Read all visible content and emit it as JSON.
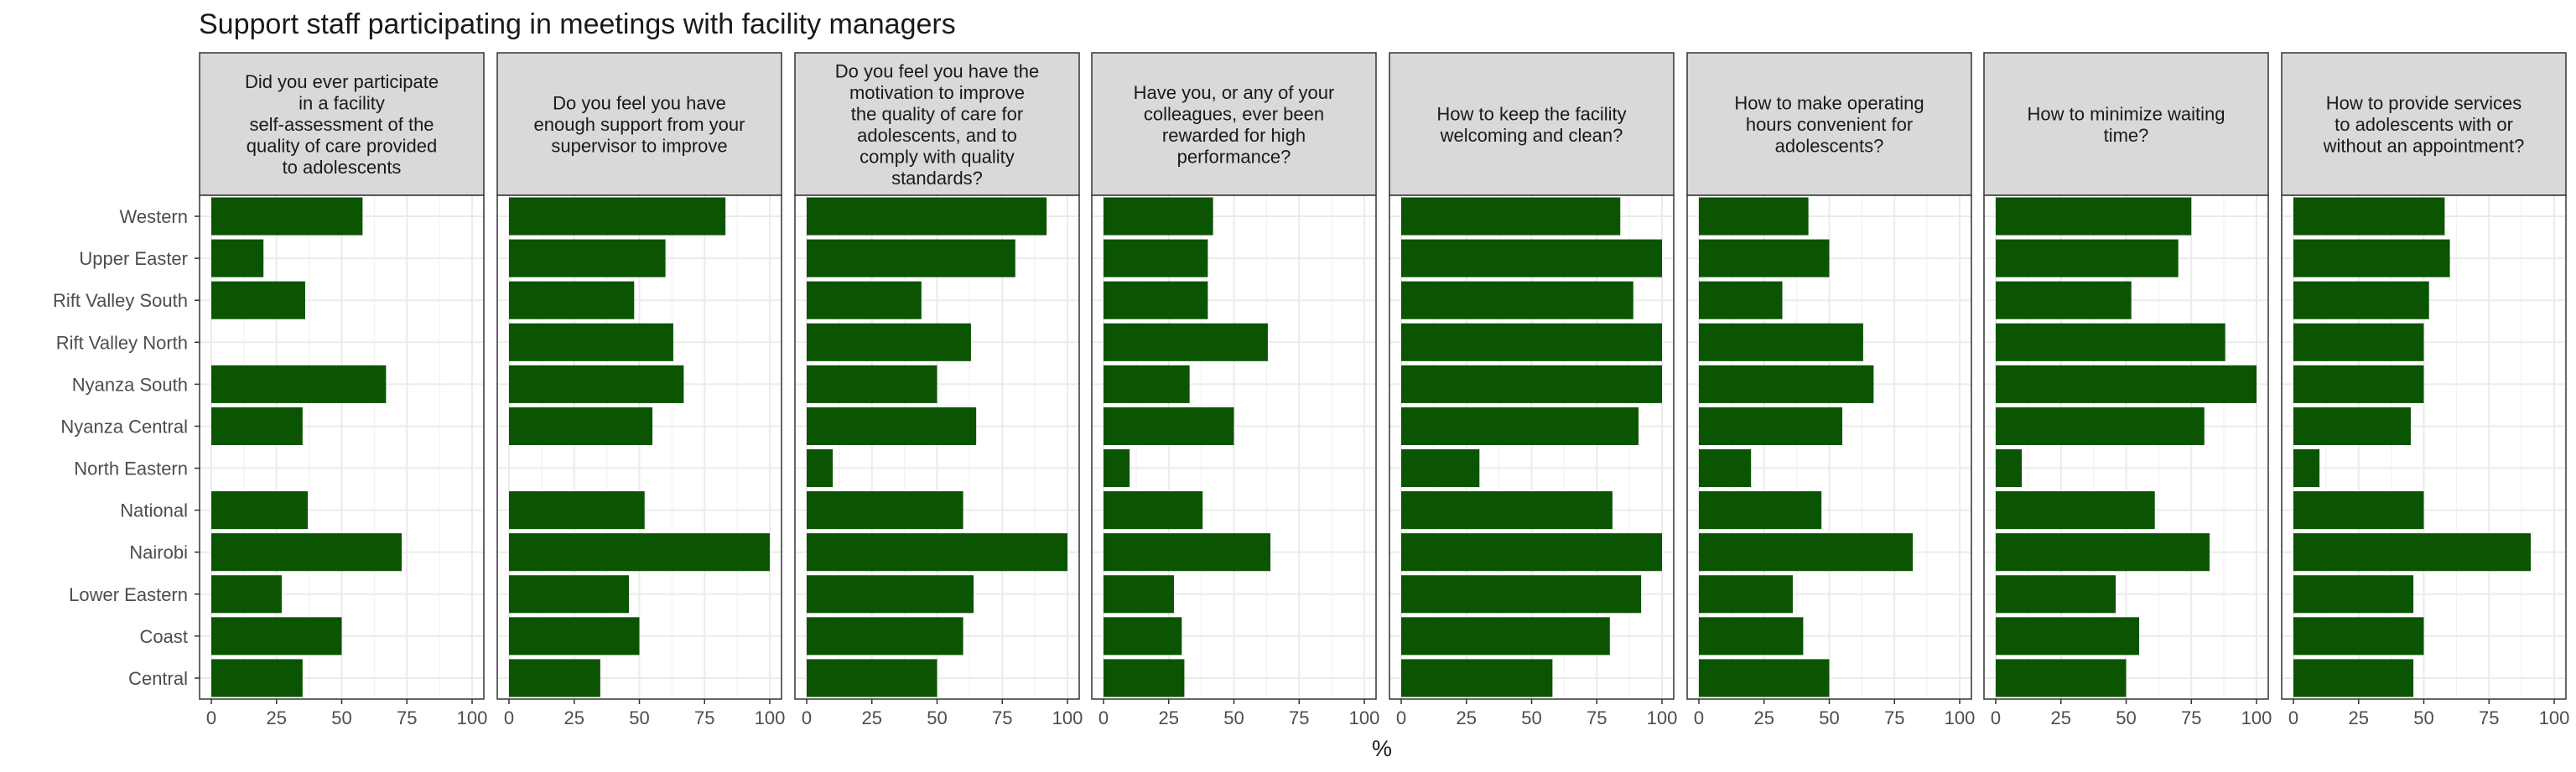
{
  "chart_data": {
    "type": "bar",
    "orientation": "horizontal",
    "title": "Support staff participating in meetings with facility managers",
    "xlabel": "%",
    "ylabel": "",
    "xlim": [
      0,
      100
    ],
    "x_ticks": [
      0,
      25,
      50,
      75,
      100
    ],
    "bar_color": "#0b5402",
    "categories": [
      "Western",
      "Upper Easter",
      "Rift Valley South",
      "Rift Valley North",
      "Nyanza South",
      "Nyanza Central",
      "North Eastern",
      "National",
      "Nairobi",
      "Lower Eastern",
      "Coast",
      "Central"
    ],
    "panels": [
      {
        "label": "Did you ever participate in a facility self-assessment of the quality of care provided to adolescents",
        "label_lines": [
          "Did you ever participate",
          "in a facility",
          "self-assessment of the",
          "quality of care provided",
          "to adolescents"
        ],
        "values": [
          58,
          20,
          36,
          null,
          67,
          35,
          null,
          37,
          73,
          27,
          50,
          35
        ]
      },
      {
        "label": "Do you feel you have enough support from your supervisor to improve",
        "label_lines": [
          "Do you feel you have",
          "enough support from your",
          "supervisor to improve"
        ],
        "values": [
          83,
          60,
          48,
          63,
          67,
          55,
          null,
          52,
          100,
          46,
          50,
          35
        ]
      },
      {
        "label": "Do you feel you have the motivation to improve the quality of care for adolescents, and to comply with quality standards?",
        "label_lines": [
          "Do you feel you have the",
          "motivation to improve",
          "the quality of care for",
          "adolescents, and to",
          "comply with quality",
          "standards?"
        ],
        "values": [
          92,
          80,
          44,
          63,
          50,
          65,
          10,
          60,
          100,
          64,
          60,
          50
        ]
      },
      {
        "label": "Have you, or any of your colleagues, ever been rewarded for high performance?",
        "label_lines": [
          "Have you, or any of your",
          "colleagues, ever been",
          "rewarded for high",
          "performance?"
        ],
        "values": [
          42,
          40,
          40,
          63,
          33,
          50,
          10,
          38,
          64,
          27,
          30,
          31
        ]
      },
      {
        "label": "How to keep the facility welcoming and clean?",
        "label_lines": [
          "How to keep the facility",
          "welcoming and clean?"
        ],
        "values": [
          84,
          100,
          89,
          100,
          100,
          91,
          30,
          81,
          100,
          92,
          80,
          58
        ]
      },
      {
        "label": "How to make operating hours convenient for adolescents?",
        "label_lines": [
          "How to make operating",
          "hours convenient for",
          "adolescents?"
        ],
        "values": [
          42,
          50,
          32,
          63,
          67,
          55,
          20,
          47,
          82,
          36,
          40,
          50
        ]
      },
      {
        "label": "How to minimize waiting time?",
        "label_lines": [
          "How to minimize waiting",
          "time?"
        ],
        "values": [
          75,
          70,
          52,
          88,
          100,
          80,
          10,
          61,
          82,
          46,
          55,
          50
        ]
      },
      {
        "label": "How to provide services to adolescents with or without an appointment?",
        "label_lines": [
          "How to provide services",
          "to adolescents with or",
          "without an appointment?"
        ],
        "values": [
          58,
          60,
          52,
          50,
          50,
          45,
          10,
          50,
          91,
          46,
          50,
          46
        ]
      }
    ]
  }
}
